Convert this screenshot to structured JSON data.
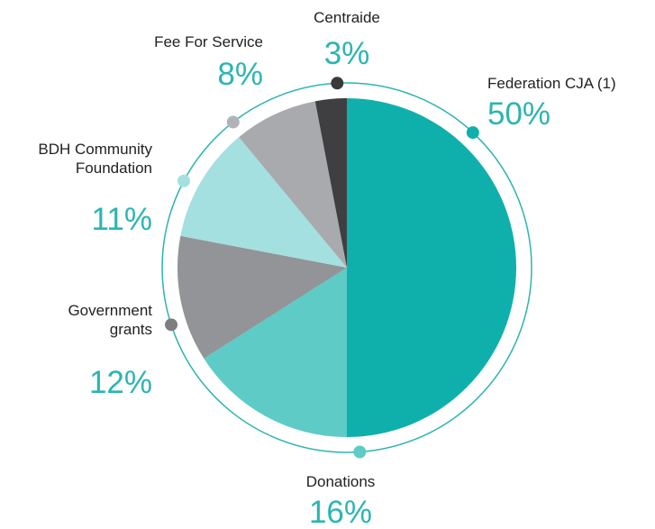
{
  "chart_data": {
    "type": "pie",
    "start": "top",
    "direction": "clockwise",
    "slices": [
      {
        "label": [
          "Federation CJA (1)"
        ],
        "value": 50,
        "value_label": "50%",
        "color": "#0fb0ac"
      },
      {
        "label": [
          "Donations"
        ],
        "value": 16,
        "value_label": "16%",
        "color": "#5ecbc6"
      },
      {
        "label": [
          "Government",
          "grants"
        ],
        "value": 12,
        "value_label": "12%",
        "color": "#929497"
      },
      {
        "label": [
          "BDH Community",
          "Foundation"
        ],
        "value": 11,
        "value_label": "11%",
        "color": "#a3e0df"
      },
      {
        "label": [
          "Fee For Service"
        ],
        "value": 8,
        "value_label": "8%",
        "color": "#a8aaad"
      },
      {
        "label": [
          "Centraide"
        ],
        "value": 3,
        "value_label": "3%",
        "color": "#3f3f41"
      }
    ],
    "dot_colors": [
      "#0fb0ac",
      "#5ecbc6",
      "#7d7e80",
      "#a3e0df",
      "#b2b3b6",
      "#3a3a3c"
    ],
    "outer_ring_color": "#2bb5b1",
    "percent_text_color": "#2bb5b1"
  }
}
